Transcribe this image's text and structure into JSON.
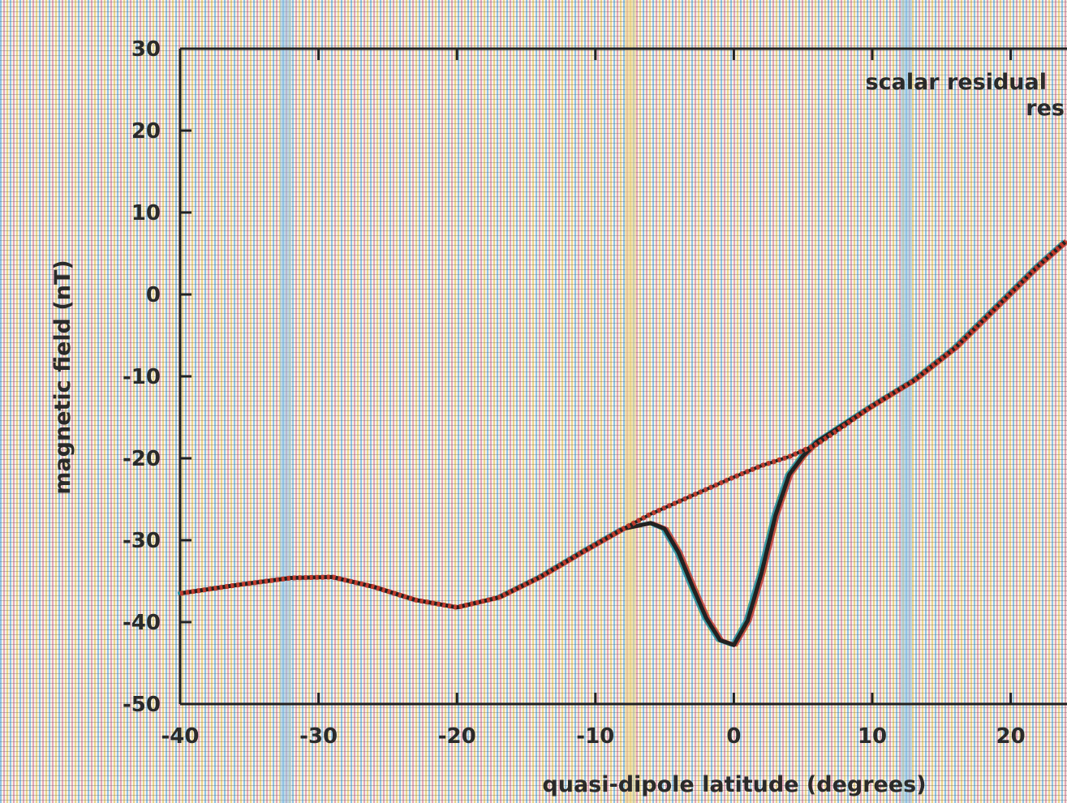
{
  "colors": {
    "background": "#f7f2e6",
    "axis": "#222222",
    "stripe_blue": "#8fc3e6",
    "stripe_pink": "#e6a6b8",
    "stripe_yellow": "#ecd58a",
    "series_main": "#222222",
    "series_model_a": "#c0392b",
    "series_model_b": "#1a8f9a"
  },
  "chart_data": {
    "type": "line",
    "title": "",
    "xlabel": "quasi-dipole latitude (degrees)",
    "ylabel": "magnetic field (nT)",
    "xlim": [
      -40,
      24
    ],
    "ylim": [
      -50,
      30
    ],
    "xticks": [
      -40,
      -30,
      -20,
      -10,
      0,
      10,
      20
    ],
    "yticks": [
      30,
      20,
      10,
      0,
      -10,
      -20,
      -30,
      -40,
      -50
    ],
    "grid": false,
    "legend": {
      "placement": "top-right",
      "entries": [
        "scalar residual",
        "res"
      ]
    },
    "series": [
      {
        "name": "scalar residual",
        "color": "#222222",
        "x": [
          -40,
          -36,
          -32,
          -29,
          -26,
          -23,
          -20,
          -17,
          -14,
          -11,
          -8,
          -6,
          -5,
          -4,
          -3,
          -2,
          -1,
          0,
          1,
          2,
          3,
          4,
          5,
          6,
          8,
          10,
          13,
          16,
          19,
          22,
          24
        ],
        "y": [
          -36.5,
          -35.5,
          -34.6,
          -34.5,
          -35.7,
          -37.3,
          -38.2,
          -37.0,
          -34.5,
          -31.5,
          -28.6,
          -27.9,
          -28.6,
          -31.5,
          -35.6,
          -39.5,
          -42.2,
          -42.8,
          -39.8,
          -34.0,
          -27.0,
          -22.0,
          -19.7,
          -18.0,
          -15.8,
          -13.6,
          -10.5,
          -6.5,
          -1.5,
          3.5,
          6.5
        ]
      },
      {
        "name": "res",
        "color": "#c0392b",
        "x": [
          -40,
          -36,
          -32,
          -29,
          -26,
          -23,
          -20,
          -17,
          -14,
          -11,
          -8,
          -6,
          -4,
          -2,
          0,
          2,
          4,
          6,
          8,
          10,
          13,
          16,
          19,
          22,
          24
        ],
        "y": [
          -36.5,
          -35.5,
          -34.6,
          -34.5,
          -35.7,
          -37.3,
          -38.2,
          -37.0,
          -34.5,
          -31.5,
          -28.6,
          -26.8,
          -25.3,
          -23.8,
          -22.3,
          -20.9,
          -19.8,
          -18.3,
          -16.0,
          -13.6,
          -10.5,
          -6.5,
          -1.5,
          3.5,
          6.5
        ]
      }
    ]
  }
}
